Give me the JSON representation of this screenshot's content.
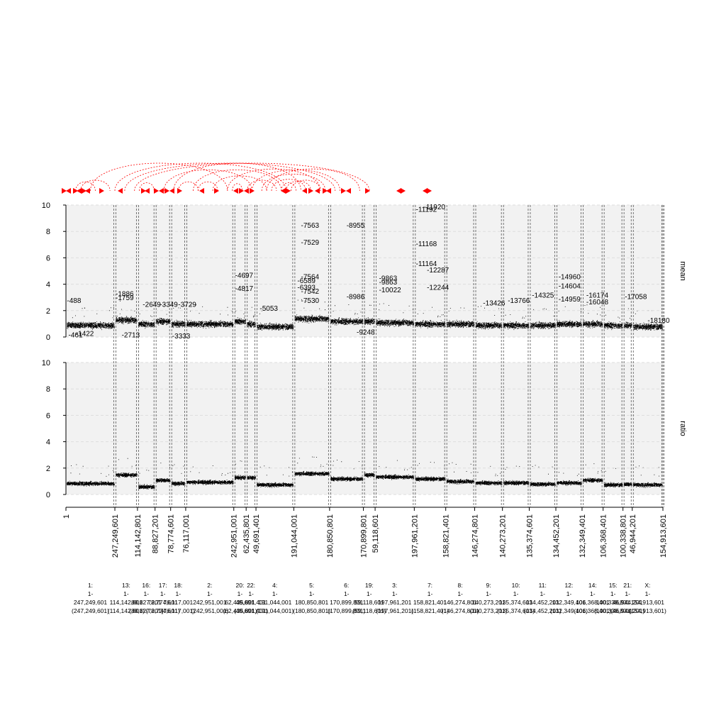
{
  "chart_data": {
    "type": "scatter",
    "panels": [
      {
        "id": "mean",
        "ylabel": "mean",
        "ylim": [
          0,
          10
        ],
        "yticks": [
          "0",
          "2",
          "4",
          "6",
          "8",
          "10"
        ],
        "grid": true,
        "background": "#f2f2f2",
        "point_color": "#000000"
      },
      {
        "id": "ratio",
        "ylabel": "ratio",
        "ylim": [
          0,
          10
        ],
        "yticks": [
          "0",
          "2",
          "4",
          "6",
          "8",
          "10"
        ],
        "grid": true,
        "background": "#f2f2f2",
        "point_color": "#000000"
      }
    ],
    "arc_color": "#ff0000",
    "x_start_label": "1",
    "boundary_labels": [
      "247,249,601",
      "114,142,801",
      "88,827,201",
      "78,774,601",
      "76,117,001",
      "242,951,001",
      "62,435,801",
      "49,691,401",
      "191,044,001",
      "180,850,801",
      "170,899,801",
      "59,118,601",
      "197,961,201",
      "158,821,401",
      "146,274,801",
      "140,273,201",
      "135,374,601",
      "134,452,201",
      "132,349,401",
      "106,368,401",
      "100,338,801",
      "46,944,201",
      "154,913,601"
    ],
    "chromosomes": [
      {
        "name": "1:",
        "range": "1-",
        "size": "247,249,601",
        "paren": "(247,249,601)",
        "mean_level": 0.9,
        "ratio_level": 0.85
      },
      {
        "name": "13:",
        "range": "1-",
        "size": "114,142,801",
        "paren": "(114,142,801)",
        "mean_level": 1.3,
        "ratio_level": 1.5
      },
      {
        "name": "16:",
        "range": "1-",
        "size": "88,827,201",
        "paren": "(88,827,201)",
        "mean_level": 1.0,
        "ratio_level": 0.6
      },
      {
        "name": "17:",
        "range": "1-",
        "size": "78,774,601",
        "paren": "(78,774,601)",
        "mean_level": 1.2,
        "ratio_level": 1.1
      },
      {
        "name": "18:",
        "range": "1-",
        "size": "76,117,001",
        "paren": "(76,117,001)",
        "mean_level": 1.0,
        "ratio_level": 0.85
      },
      {
        "name": "2:",
        "range": "1-",
        "size": "242,951,001",
        "paren": "(242,951,001)",
        "mean_level": 1.0,
        "ratio_level": 0.95
      },
      {
        "name": "20:",
        "range": "1-",
        "size": "62,435,801",
        "paren": "(62,435,801)",
        "mean_level": 1.2,
        "ratio_level": 1.3
      },
      {
        "name": "22:",
        "range": "1-",
        "size": "49,691,401",
        "paren": "(49,691,401)",
        "mean_level": 1.0,
        "ratio_level": 1.3
      },
      {
        "name": "4:",
        "range": "1-",
        "size": "191,044,001",
        "paren": "(191,044,001)",
        "mean_level": 0.8,
        "ratio_level": 0.75
      },
      {
        "name": "5:",
        "range": "1-",
        "size": "180,850,801",
        "paren": "(180,850,801)",
        "mean_level": 1.4,
        "ratio_level": 1.6
      },
      {
        "name": "6:",
        "range": "1-",
        "size": "170,899,801",
        "paren": "(170,899,801)",
        "mean_level": 1.2,
        "ratio_level": 1.2
      },
      {
        "name": "19:",
        "range": "1-",
        "size": "59,118,601",
        "paren": "(59,118,601)",
        "mean_level": 1.2,
        "ratio_level": 1.5
      },
      {
        "name": "3:",
        "range": "1-",
        "size": "197,961,201",
        "paren": "(197,961,201)",
        "mean_level": 1.1,
        "ratio_level": 1.35
      },
      {
        "name": "7:",
        "range": "1-",
        "size": "158,821,401",
        "paren": "(158,821,401)",
        "mean_level": 1.0,
        "ratio_level": 1.2
      },
      {
        "name": "8:",
        "range": "1-",
        "size": "146,274,801",
        "paren": "(146,274,801)",
        "mean_level": 1.0,
        "ratio_level": 1.0
      },
      {
        "name": "9:",
        "range": "1-",
        "size": "140,273,201",
        "paren": "(140,273,201)",
        "mean_level": 0.9,
        "ratio_level": 0.9
      },
      {
        "name": "10:",
        "range": "1-",
        "size": "135,374,601",
        "paren": "(135,374,601)",
        "mean_level": 0.9,
        "ratio_level": 0.9
      },
      {
        "name": "11:",
        "range": "1-",
        "size": "134,452,201",
        "paren": "(134,452,201)",
        "mean_level": 0.9,
        "ratio_level": 0.8
      },
      {
        "name": "12:",
        "range": "1-",
        "size": "132,349,401",
        "paren": "(132,349,401)",
        "mean_level": 1.0,
        "ratio_level": 0.9
      },
      {
        "name": "14:",
        "range": "1-",
        "size": "106,368,401",
        "paren": "(106,368,401)",
        "mean_level": 1.0,
        "ratio_level": 1.1
      },
      {
        "name": "15:",
        "range": "1-",
        "size": "100,338,801",
        "paren": "(100,338,801)",
        "mean_level": 0.9,
        "ratio_level": 0.75
      },
      {
        "name": "21:",
        "range": "1-",
        "size": "46,944,201",
        "paren": "(46,944,201)",
        "mean_level": 0.9,
        "ratio_level": 0.8
      },
      {
        "name": "X:",
        "range": "1-",
        "size": "154,913,601",
        "paren": "(154,913,601)",
        "mean_level": 0.8,
        "ratio_level": 0.75
      }
    ],
    "mean_annotations": [
      {
        "label": "-488",
        "pos": 0.02,
        "y": 2.8
      },
      {
        "label": "-461",
        "pos": 0.05,
        "y": 0.2
      },
      {
        "label": "-1422",
        "pos": 0.2,
        "y": 0.3
      },
      {
        "label": "-1886",
        "pos": 0.03,
        "y": 3.3,
        "chr": 1
      },
      {
        "label": "-1759",
        "pos": 0.03,
        "y": 3.0,
        "chr": 1
      },
      {
        "label": "-2713",
        "pos": 0.3,
        "y": 0.2,
        "chr": 1
      },
      {
        "label": "-2649",
        "pos": 0.3,
        "y": 2.5,
        "chr": 2
      },
      {
        "label": "-3349",
        "pos": 0.3,
        "y": 2.5,
        "chr": 3
      },
      {
        "label": "-3333",
        "pos": 0.1,
        "y": 0.1,
        "chr": 4
      },
      {
        "label": "-3729",
        "pos": 0.5,
        "y": 2.5,
        "chr": 4
      },
      {
        "label": "-4697",
        "pos": 0.1,
        "y": 4.7,
        "chr": 6
      },
      {
        "label": "-4817",
        "pos": 0.1,
        "y": 3.7,
        "chr": 6
      },
      {
        "label": "-5053",
        "pos": 0.1,
        "y": 2.2,
        "chr": 8
      },
      {
        "label": "-6589",
        "pos": 0.1,
        "y": 4.3,
        "chr": 9
      },
      {
        "label": "-6393",
        "pos": 0.1,
        "y": 3.8,
        "chr": 9
      },
      {
        "label": "-7563",
        "pos": 0.2,
        "y": 8.5,
        "chr": 9
      },
      {
        "label": "-7529",
        "pos": 0.2,
        "y": 7.2,
        "chr": 9
      },
      {
        "label": "-7564",
        "pos": 0.2,
        "y": 4.6,
        "chr": 9
      },
      {
        "label": "-7542",
        "pos": 0.2,
        "y": 3.5,
        "chr": 9
      },
      {
        "label": "-7530",
        "pos": 0.2,
        "y": 2.8,
        "chr": 9
      },
      {
        "label": "-8955",
        "pos": 0.5,
        "y": 8.5,
        "chr": 10
      },
      {
        "label": "-8986",
        "pos": 0.5,
        "y": 3.1,
        "chr": 10
      },
      {
        "label": "-9248",
        "pos": 0.8,
        "y": 0.4,
        "chr": 10
      },
      {
        "label": "-9863",
        "pos": 0.1,
        "y": 4.5,
        "chr": 12
      },
      {
        "label": "-9863",
        "pos": 0.1,
        "y": 4.2,
        "chr": 12
      },
      {
        "label": "-10022",
        "pos": 0.1,
        "y": 3.6,
        "chr": 12
      },
      {
        "label": "-11192",
        "pos": 0.05,
        "y": 9.7,
        "chr": 13
      },
      {
        "label": "-11920",
        "pos": 0.3,
        "y": 9.9,
        "chr": 13
      },
      {
        "label": "-11168",
        "pos": 0.05,
        "y": 7.1,
        "chr": 13
      },
      {
        "label": "-11164",
        "pos": 0.05,
        "y": 5.6,
        "chr": 13
      },
      {
        "label": "-12287",
        "pos": 0.4,
        "y": 5.1,
        "chr": 13
      },
      {
        "label": "-12244",
        "pos": 0.4,
        "y": 3.8,
        "chr": 13
      },
      {
        "label": "-13426",
        "pos": 0.3,
        "y": 2.6,
        "chr": 15
      },
      {
        "label": "-13766",
        "pos": 0.2,
        "y": 2.8,
        "chr": 16
      },
      {
        "label": "-14325",
        "pos": 0.1,
        "y": 3.2,
        "chr": 17
      },
      {
        "label": "-14960",
        "pos": 0.1,
        "y": 4.6,
        "chr": 18
      },
      {
        "label": "-14604",
        "pos": 0.1,
        "y": 3.9,
        "chr": 18
      },
      {
        "label": "-14959",
        "pos": 0.1,
        "y": 2.9,
        "chr": 18
      },
      {
        "label": "-16174",
        "pos": 0.2,
        "y": 3.2,
        "chr": 19
      },
      {
        "label": "-16048",
        "pos": 0.2,
        "y": 2.7,
        "chr": 19
      },
      {
        "label": "-17058",
        "pos": 0.2,
        "y": 3.1,
        "chr": 21
      },
      {
        "label": "-18180",
        "pos": 0.5,
        "y": 1.3,
        "chr": 22
      }
    ]
  }
}
